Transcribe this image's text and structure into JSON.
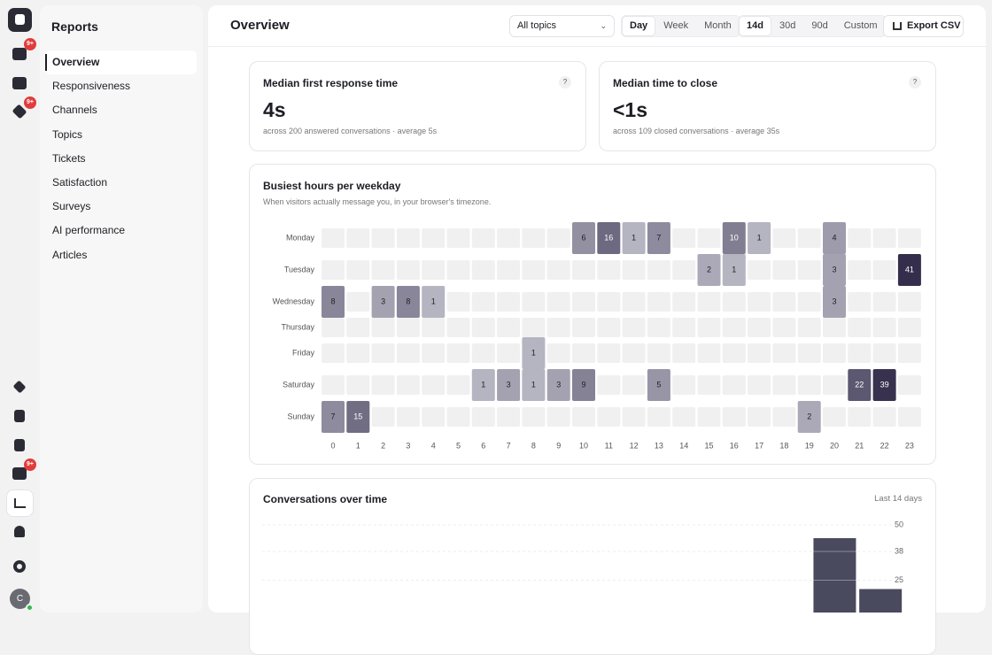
{
  "rail": {
    "badges": [
      "9+",
      "9+",
      "9+"
    ],
    "avatar": "C"
  },
  "sidebar": {
    "title": "Reports",
    "items": [
      "Overview",
      "Responsiveness",
      "Channels",
      "Topics",
      "Tickets",
      "Satisfaction",
      "Surveys",
      "AI performance",
      "Articles"
    ],
    "active": 0
  },
  "header": {
    "title": "Overview",
    "topic_select": "All topics",
    "granularity": [
      "Day",
      "Week",
      "Month"
    ],
    "granularity_active": 0,
    "ranges": [
      "14d",
      "30d",
      "90d",
      "Custom"
    ],
    "range_active": 0,
    "export": "Export CSV"
  },
  "metrics": [
    {
      "title": "Median first response time",
      "help": "?",
      "value": "4s",
      "note": "across 200 answered conversations · average 5s"
    },
    {
      "title": "Median time to close",
      "help": "?",
      "value": "<1s",
      "note": "across 109 closed conversations · average 35s"
    }
  ],
  "heatmap": {
    "title": "Busiest hours per weekday",
    "subtitle": "When visitors actually message you, in your browser's timezone.",
    "hours": [
      0,
      1,
      2,
      3,
      4,
      5,
      6,
      7,
      8,
      9,
      10,
      11,
      12,
      13,
      14,
      15,
      16,
      17,
      18,
      19,
      20,
      21,
      22,
      23
    ],
    "rows": [
      {
        "day": "Monday",
        "values": [
          null,
          null,
          null,
          null,
          null,
          null,
          null,
          null,
          null,
          null,
          6,
          16,
          1,
          7,
          null,
          null,
          10,
          1,
          null,
          null,
          4,
          null,
          null,
          null
        ]
      },
      {
        "day": "Tuesday",
        "values": [
          null,
          null,
          null,
          null,
          null,
          null,
          null,
          null,
          null,
          null,
          null,
          null,
          null,
          null,
          null,
          2,
          1,
          null,
          null,
          null,
          3,
          null,
          null,
          41
        ]
      },
      {
        "day": "Wednesday",
        "values": [
          8,
          null,
          3,
          8,
          1,
          null,
          null,
          null,
          null,
          null,
          null,
          null,
          null,
          null,
          null,
          null,
          null,
          null,
          null,
          null,
          3,
          null,
          null,
          null
        ]
      },
      {
        "day": "Thursday",
        "values": [
          null,
          null,
          null,
          null,
          null,
          null,
          null,
          null,
          null,
          null,
          null,
          null,
          null,
          null,
          null,
          null,
          null,
          null,
          null,
          null,
          null,
          null,
          null,
          null
        ]
      },
      {
        "day": "Friday",
        "values": [
          null,
          null,
          null,
          null,
          null,
          null,
          null,
          null,
          1,
          null,
          null,
          null,
          null,
          null,
          null,
          null,
          null,
          null,
          null,
          null,
          null,
          null,
          null,
          null
        ]
      },
      {
        "day": "Saturday",
        "values": [
          null,
          null,
          null,
          null,
          null,
          null,
          1,
          3,
          1,
          3,
          9,
          null,
          null,
          5,
          null,
          null,
          null,
          null,
          null,
          null,
          null,
          22,
          39,
          null
        ]
      },
      {
        "day": "Sunday",
        "values": [
          7,
          15,
          null,
          null,
          null,
          null,
          null,
          null,
          null,
          null,
          null,
          null,
          null,
          null,
          null,
          null,
          null,
          null,
          null,
          2,
          null,
          null,
          null,
          null
        ]
      }
    ]
  },
  "chart_data": {
    "type": "bar",
    "title": "Conversations over time",
    "range_label": "Last 14 days",
    "values": [
      0,
      0,
      0,
      0,
      0,
      0,
      0,
      0,
      0,
      0,
      0,
      0,
      44,
      21
    ],
    "color": "#4a4a5e",
    "ylim": [
      0,
      50
    ],
    "yticks": [
      50,
      38,
      25
    ],
    "grid": true
  }
}
